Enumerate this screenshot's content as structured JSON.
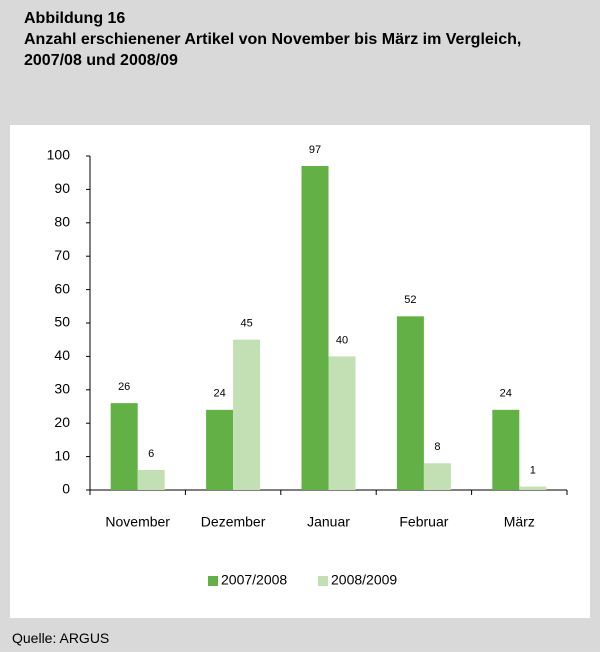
{
  "chart_data": {
    "type": "bar",
    "title": "Abbildung 16",
    "subtitle": "Anzahl erschienener Artikel von November bis März im Vergleich, 2007/08 und 2008/09",
    "source": "Quelle: ARGUS",
    "categories": [
      "November",
      "Dezember",
      "Januar",
      "Februar",
      "März"
    ],
    "series": [
      {
        "name": "2007/2008",
        "color": "#62b046",
        "values": [
          26,
          24,
          97,
          52,
          24
        ]
      },
      {
        "name": "2008/2009",
        "color": "#c2e0b4",
        "values": [
          6,
          45,
          40,
          8,
          1
        ]
      }
    ],
    "ylim": [
      0,
      100
    ],
    "yticks": [
      0,
      10,
      20,
      30,
      40,
      50,
      60,
      70,
      80,
      90,
      100
    ],
    "grid": false,
    "legend": "bottom"
  }
}
